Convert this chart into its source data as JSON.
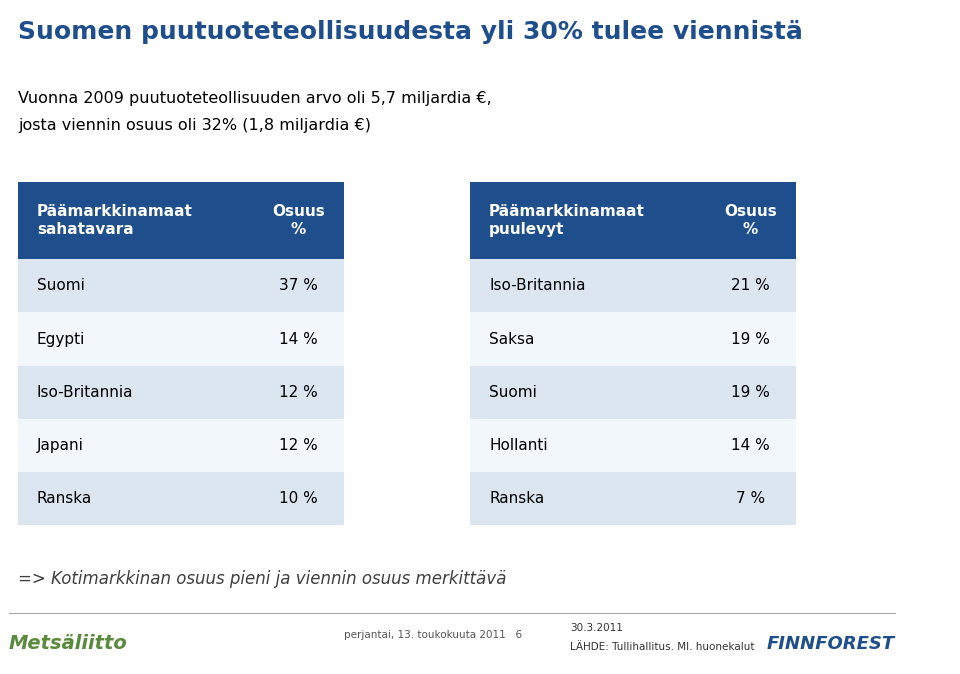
{
  "title": "Suomen puutuoteteollisuudesta yli 30% tulee viennistä",
  "subtitle_line1": "Vuonna 2009 puutuoteteollisuuden arvo oli 5,7 miljardia €,",
  "subtitle_line2": "josta viennin osuus oli 32% (1,8 miljardia €)",
  "footer_italic": "=> Kotimarkkinan osuus pieni ja viennin osuus merkittävä",
  "footer_date": "30.3.2011",
  "footer_source": "LÄHDE: Tullihallitus. MI. huonekalut",
  "footer_page": "perjantai, 13. toukokuuta 2011",
  "footer_num": "6",
  "table1_header_col1": "Päämarkkinamaat\nsahatavara",
  "table1_header_col2": "Osuus\n%",
  "table1_rows": [
    [
      "Suomi",
      "37 %"
    ],
    [
      "Egypti",
      "14 %"
    ],
    [
      "Iso-Britannia",
      "12 %"
    ],
    [
      "Japani",
      "12 %"
    ],
    [
      "Ranska",
      "10 %"
    ]
  ],
  "table2_header_col1": "Päämarkkinamaat\npuulevyt",
  "table2_header_col2": "Osuus\n%",
  "table2_rows": [
    [
      "Iso-Britannia",
      "21 %"
    ],
    [
      "Saksa",
      "19 %"
    ],
    [
      "Suomi",
      "19 %"
    ],
    [
      "Hollanti",
      "14 %"
    ],
    [
      "Ranska",
      "7 %"
    ]
  ],
  "header_bg": "#1f4e8c",
  "header_fg": "#ffffff",
  "row_even_bg": "#dce6f1",
  "row_odd_bg": "#f2f7fc",
  "title_color": "#1f4e8c",
  "subtitle_color": "#000000",
  "footer_italic_color": "#404040",
  "bg_color": "#ffffff",
  "metsaliitto_color": "#5a8a3c",
  "finnforest_color": "#1f4e8c"
}
